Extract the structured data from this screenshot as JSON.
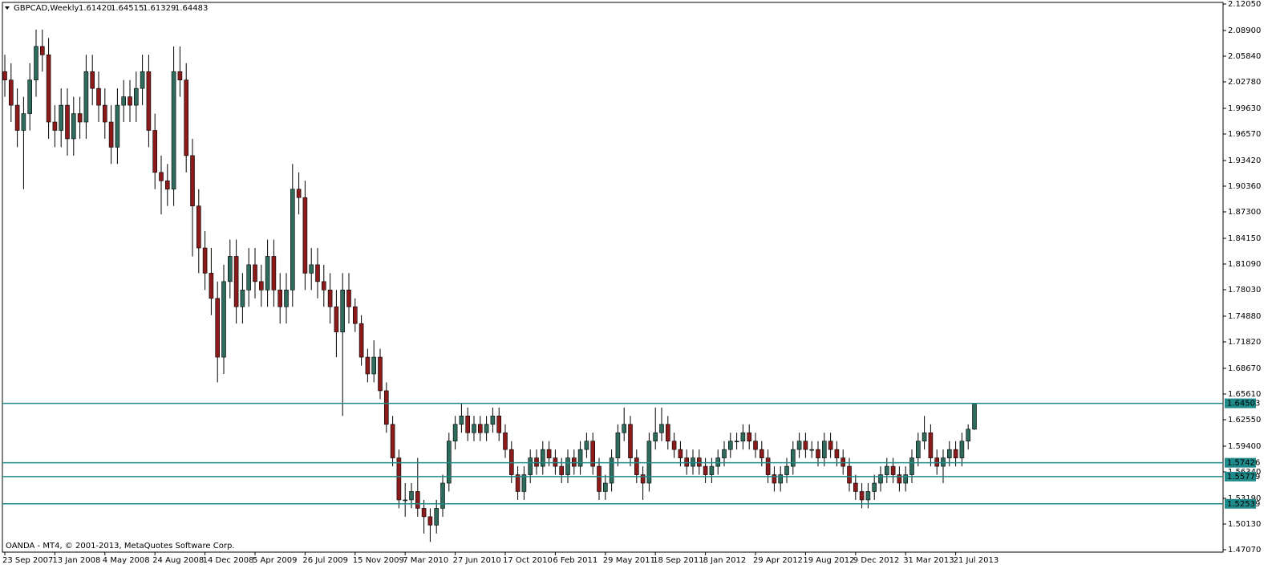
{
  "chart_data": {
    "type": "candlestick",
    "header": {
      "symbol": "GBPCAD,Weekly",
      "values": [
        "1.61420",
        "1.64515",
        "1.61329",
        "1.64483"
      ]
    },
    "footer": "OANDA - MT4, © 2001-2013, MetaQuotes Software Corp.",
    "up_color": "#2e6b5c",
    "down_color": "#8b1a1a",
    "level_color": "#1f8a8a",
    "ylim": [
      1.4707,
      2.1205
    ],
    "yticks": [
      {
        "value": 2.1205,
        "label": "2.12050"
      },
      {
        "value": 2.089,
        "label": "2.08900"
      },
      {
        "value": 2.0584,
        "label": "2.05840"
      },
      {
        "value": 2.0278,
        "label": "2.02780"
      },
      {
        "value": 1.9963,
        "label": "1.99630"
      },
      {
        "value": 1.9657,
        "label": "1.96570"
      },
      {
        "value": 1.9342,
        "label": "1.93420"
      },
      {
        "value": 1.9036,
        "label": "1.90360"
      },
      {
        "value": 1.873,
        "label": "1.87300"
      },
      {
        "value": 1.8415,
        "label": "1.84150"
      },
      {
        "value": 1.8109,
        "label": "1.81090"
      },
      {
        "value": 1.7803,
        "label": "1.78030"
      },
      {
        "value": 1.7488,
        "label": "1.74880"
      },
      {
        "value": 1.7182,
        "label": "1.71820"
      },
      {
        "value": 1.6867,
        "label": "1.68670"
      },
      {
        "value": 1.6561,
        "label": "1.65610"
      },
      {
        "value": 1.6255,
        "label": "1.62550"
      },
      {
        "value": 1.594,
        "label": "1.59400"
      },
      {
        "value": 1.5634,
        "label": "1.56340"
      },
      {
        "value": 1.5319,
        "label": "1.53190"
      },
      {
        "value": 1.5013,
        "label": "1.50130"
      },
      {
        "value": 1.4707,
        "label": "1.47070"
      }
    ],
    "levels": [
      1.64503,
      1.57426,
      1.55779,
      1.52539
    ],
    "categories": [
      "23 Sep 2007",
      null,
      null,
      null,
      null,
      null,
      null,
      null,
      "13 Jan 2008",
      null,
      null,
      null,
      null,
      null,
      null,
      null,
      "4 May 2008",
      null,
      null,
      null,
      null,
      null,
      null,
      null,
      "24 Aug 2008",
      null,
      null,
      null,
      null,
      null,
      null,
      null,
      "14 Dec 2008",
      null,
      null,
      null,
      null,
      null,
      null,
      null,
      "5 Apr 2009",
      null,
      null,
      null,
      null,
      null,
      null,
      null,
      "26 Jul 2009",
      null,
      null,
      null,
      null,
      null,
      null,
      null,
      "15 Nov 2009",
      null,
      null,
      null,
      null,
      null,
      null,
      null,
      "7 Mar 2010",
      null,
      null,
      null,
      null,
      null,
      null,
      null,
      "27 Jun 2010",
      null,
      null,
      null,
      null,
      null,
      null,
      null,
      "17 Oct 2010",
      null,
      null,
      null,
      null,
      null,
      null,
      null,
      "6 Feb 2011",
      null,
      null,
      null,
      null,
      null,
      null,
      null,
      "29 May 2011",
      null,
      null,
      null,
      null,
      null,
      null,
      null,
      "18 Sep 2011",
      null,
      null,
      null,
      null,
      null,
      null,
      null,
      "8 Jan 2012",
      null,
      null,
      null,
      null,
      null,
      null,
      null,
      "29 Apr 2012",
      null,
      null,
      null,
      null,
      null,
      null,
      null,
      "19 Aug 2012",
      null,
      null,
      null,
      null,
      null,
      null,
      null,
      "9 Dec 2012",
      null,
      null,
      null,
      null,
      null,
      null,
      null,
      "31 Mar 2013",
      null,
      null,
      null,
      null,
      null,
      null,
      null,
      "21 Jul 2013",
      null,
      null,
      null
    ],
    "open": [
      2.04,
      2.03,
      2.0,
      1.97,
      1.99,
      2.03,
      2.07,
      2.06,
      1.98,
      1.97,
      2.0,
      1.96,
      1.99,
      1.98,
      2.04,
      2.02,
      2.0,
      1.98,
      1.95,
      2.0,
      2.01,
      2.0,
      2.02,
      2.04,
      1.97,
      1.92,
      1.91,
      1.9,
      2.04,
      2.03,
      1.94,
      1.88,
      1.83,
      1.8,
      1.77,
      1.7,
      1.79,
      1.82,
      1.76,
      1.78,
      1.81,
      1.79,
      1.78,
      1.82,
      1.78,
      1.76,
      1.78,
      1.9,
      1.89,
      1.8,
      1.81,
      1.79,
      1.78,
      1.76,
      1.73,
      1.78,
      1.76,
      1.74,
      1.7,
      1.68,
      1.7,
      1.66,
      1.62,
      1.58,
      1.53,
      1.53,
      1.54,
      1.52,
      1.51,
      1.5,
      1.52,
      1.55,
      1.6,
      1.62,
      1.63,
      1.61,
      1.62,
      1.61,
      1.62,
      1.63,
      1.61,
      1.59,
      1.56,
      1.54,
      1.56,
      1.58,
      1.57,
      1.59,
      1.58,
      1.57,
      1.56,
      1.58,
      1.57,
      1.59,
      1.6,
      1.57,
      1.54,
      1.55,
      1.58,
      1.61,
      1.62,
      1.58,
      1.56,
      1.55,
      1.6,
      1.61,
      1.62,
      1.6,
      1.59,
      1.58,
      1.57,
      1.58,
      1.57,
      1.56,
      1.57,
      1.58,
      1.59,
      1.6,
      1.6,
      1.61,
      1.6,
      1.59,
      1.58,
      1.56,
      1.55,
      1.56,
      1.57,
      1.59,
      1.6,
      1.59,
      1.59,
      1.58,
      1.6,
      1.59,
      1.58,
      1.57,
      1.55,
      1.54,
      1.53,
      1.54,
      1.55,
      1.56,
      1.57,
      1.56,
      1.55,
      1.56,
      1.58,
      1.6,
      1.61,
      1.58,
      1.57,
      1.58,
      1.59,
      1.58,
      1.6,
      1.6142
    ],
    "high": [
      2.06,
      2.05,
      2.02,
      2.01,
      2.05,
      2.09,
      2.09,
      2.08,
      2.0,
      2.02,
      2.02,
      2.01,
      2.01,
      2.06,
      2.06,
      2.04,
      2.02,
      2.0,
      2.02,
      2.03,
      2.03,
      2.04,
      2.06,
      2.06,
      1.99,
      1.94,
      1.93,
      2.07,
      2.07,
      2.05,
      1.96,
      1.9,
      1.85,
      1.83,
      1.79,
      1.81,
      1.84,
      1.84,
      1.8,
      1.83,
      1.83,
      1.81,
      1.84,
      1.84,
      1.8,
      1.8,
      1.93,
      1.92,
      1.91,
      1.83,
      1.83,
      1.81,
      1.8,
      1.78,
      1.8,
      1.8,
      1.77,
      1.75,
      1.71,
      1.72,
      1.71,
      1.67,
      1.63,
      1.59,
      1.55,
      1.55,
      1.58,
      1.53,
      1.52,
      1.53,
      1.56,
      1.61,
      1.63,
      1.645,
      1.64,
      1.63,
      1.63,
      1.63,
      1.64,
      1.64,
      1.62,
      1.6,
      1.57,
      1.57,
      1.59,
      1.59,
      1.6,
      1.6,
      1.59,
      1.58,
      1.59,
      1.59,
      1.6,
      1.61,
      1.61,
      1.58,
      1.56,
      1.59,
      1.62,
      1.64,
      1.63,
      1.59,
      1.57,
      1.61,
      1.64,
      1.64,
      1.63,
      1.61,
      1.6,
      1.59,
      1.59,
      1.59,
      1.58,
      1.58,
      1.59,
      1.6,
      1.61,
      1.61,
      1.62,
      1.62,
      1.61,
      1.6,
      1.59,
      1.57,
      1.57,
      1.58,
      1.6,
      1.61,
      1.61,
      1.6,
      1.6,
      1.61,
      1.61,
      1.6,
      1.59,
      1.58,
      1.56,
      1.55,
      1.55,
      1.56,
      1.57,
      1.58,
      1.58,
      1.57,
      1.57,
      1.59,
      1.61,
      1.63,
      1.62,
      1.59,
      1.59,
      1.6,
      1.6,
      1.61,
      1.62,
      1.64515
    ],
    "low": [
      2.01,
      1.98,
      1.95,
      1.9,
      1.97,
      2.01,
      2.04,
      1.96,
      1.95,
      1.95,
      1.94,
      1.94,
      1.96,
      1.96,
      2.0,
      1.98,
      1.96,
      1.93,
      1.93,
      1.98,
      1.98,
      1.98,
      2.0,
      1.95,
      1.9,
      1.87,
      1.88,
      1.88,
      2.01,
      1.92,
      1.82,
      1.8,
      1.78,
      1.75,
      1.67,
      1.68,
      1.77,
      1.74,
      1.74,
      1.76,
      1.77,
      1.76,
      1.76,
      1.76,
      1.74,
      1.74,
      1.76,
      1.87,
      1.78,
      1.78,
      1.77,
      1.76,
      1.74,
      1.7,
      1.63,
      1.74,
      1.73,
      1.69,
      1.67,
      1.67,
      1.65,
      1.61,
      1.57,
      1.52,
      1.51,
      1.52,
      1.51,
      1.49,
      1.48,
      1.49,
      1.51,
      1.54,
      1.59,
      1.61,
      1.6,
      1.6,
      1.6,
      1.6,
      1.61,
      1.6,
      1.58,
      1.55,
      1.53,
      1.53,
      1.55,
      1.56,
      1.56,
      1.57,
      1.56,
      1.55,
      1.55,
      1.56,
      1.56,
      1.58,
      1.56,
      1.53,
      1.53,
      1.54,
      1.57,
      1.6,
      1.57,
      1.55,
      1.53,
      1.54,
      1.59,
      1.6,
      1.59,
      1.58,
      1.57,
      1.56,
      1.56,
      1.56,
      1.55,
      1.55,
      1.56,
      1.57,
      1.58,
      1.59,
      1.59,
      1.59,
      1.58,
      1.57,
      1.55,
      1.54,
      1.54,
      1.55,
      1.56,
      1.58,
      1.58,
      1.58,
      1.57,
      1.57,
      1.58,
      1.57,
      1.56,
      1.54,
      1.53,
      1.52,
      1.52,
      1.53,
      1.54,
      1.55,
      1.55,
      1.54,
      1.54,
      1.55,
      1.57,
      1.59,
      1.57,
      1.56,
      1.55,
      1.57,
      1.57,
      1.57,
      1.59,
      1.61329
    ],
    "close": [
      2.03,
      2.0,
      1.97,
      1.99,
      2.03,
      2.07,
      2.06,
      1.98,
      1.97,
      2.0,
      1.96,
      1.99,
      1.98,
      2.04,
      2.02,
      2.0,
      1.98,
      1.95,
      2.0,
      2.01,
      2.0,
      2.02,
      2.04,
      1.97,
      1.92,
      1.91,
      1.9,
      2.04,
      2.03,
      1.94,
      1.88,
      1.83,
      1.8,
      1.77,
      1.7,
      1.79,
      1.82,
      1.76,
      1.78,
      1.81,
      1.79,
      1.78,
      1.82,
      1.78,
      1.76,
      1.78,
      1.9,
      1.89,
      1.8,
      1.81,
      1.79,
      1.78,
      1.76,
      1.73,
      1.78,
      1.76,
      1.74,
      1.7,
      1.68,
      1.7,
      1.66,
      1.62,
      1.58,
      1.53,
      1.53,
      1.54,
      1.52,
      1.51,
      1.5,
      1.52,
      1.55,
      1.6,
      1.62,
      1.63,
      1.61,
      1.62,
      1.61,
      1.62,
      1.63,
      1.61,
      1.59,
      1.56,
      1.54,
      1.56,
      1.58,
      1.57,
      1.59,
      1.58,
      1.57,
      1.56,
      1.58,
      1.57,
      1.59,
      1.6,
      1.57,
      1.54,
      1.55,
      1.58,
      1.61,
      1.62,
      1.58,
      1.56,
      1.55,
      1.6,
      1.61,
      1.62,
      1.6,
      1.59,
      1.58,
      1.57,
      1.58,
      1.57,
      1.56,
      1.57,
      1.58,
      1.59,
      1.6,
      1.6,
      1.61,
      1.6,
      1.59,
      1.58,
      1.56,
      1.55,
      1.56,
      1.57,
      1.59,
      1.6,
      1.59,
      1.59,
      1.58,
      1.6,
      1.59,
      1.58,
      1.57,
      1.55,
      1.54,
      1.53,
      1.54,
      1.55,
      1.56,
      1.57,
      1.56,
      1.55,
      1.56,
      1.58,
      1.6,
      1.61,
      1.58,
      1.57,
      1.58,
      1.59,
      1.58,
      1.6,
      1.6142,
      1.64483
    ]
  }
}
